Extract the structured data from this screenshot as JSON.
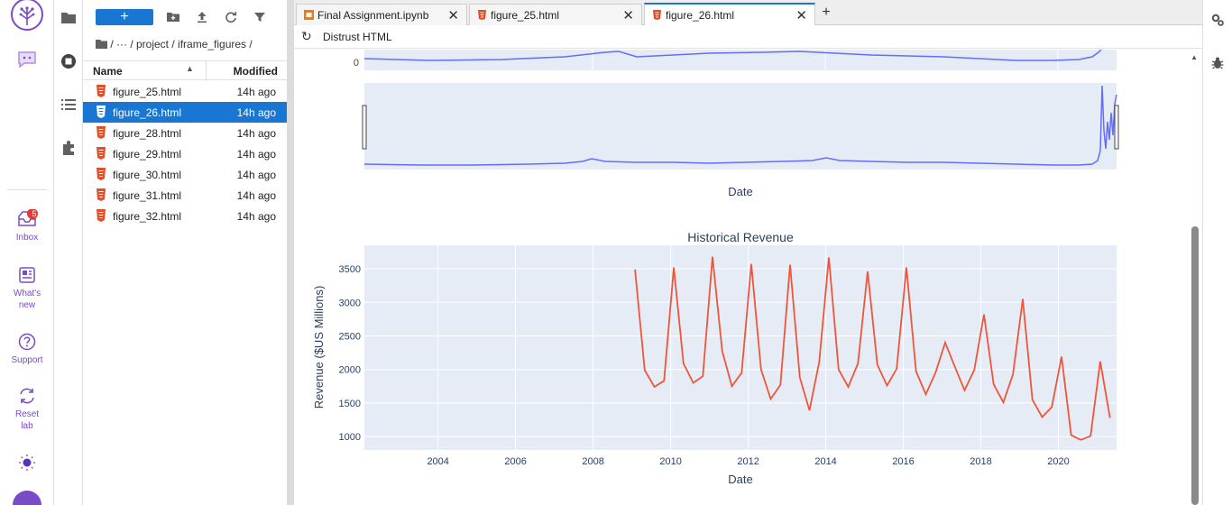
{
  "left_rail": {
    "inbox_label": "Inbox",
    "inbox_badge": "5",
    "whats_new_label_1": "What's",
    "whats_new_label_2": "new",
    "support_label": "Support",
    "reset_label_1": "Reset",
    "reset_label_2": "lab"
  },
  "filebrowser": {
    "new_button_label": "+",
    "breadcrumb": "/   ···  / project / iframe_figures /",
    "columns": {
      "name": "Name",
      "modified": "Modified"
    },
    "files": [
      {
        "name": "figure_25.html",
        "modified": "14h ago"
      },
      {
        "name": "figure_26.html",
        "modified": "14h ago"
      },
      {
        "name": "figure_28.html",
        "modified": "14h ago"
      },
      {
        "name": "figure_29.html",
        "modified": "14h ago"
      },
      {
        "name": "figure_30.html",
        "modified": "14h ago"
      },
      {
        "name": "figure_31.html",
        "modified": "14h ago"
      },
      {
        "name": "figure_32.html",
        "modified": "14h ago"
      }
    ],
    "selected_index": 1
  },
  "tabs": [
    {
      "label": "Final Assignment.ipynb",
      "icon": "notebook-icon"
    },
    {
      "label": "figure_25.html",
      "icon": "html5-icon"
    },
    {
      "label": "figure_26.html",
      "icon": "html5-icon"
    }
  ],
  "active_tab": 2,
  "toolbar": {
    "distrust_label": "Distrust HTML"
  },
  "colors": {
    "accent": "#1976d2",
    "plot_bg": "#e5ecf6",
    "price_line": "#636efa",
    "revenue_line": "#ef553b",
    "brand": "#7a4bc9"
  },
  "chart_data": [
    {
      "type": "line",
      "title": "",
      "top_axis_tick_visible": "0",
      "xlabel": "Date",
      "note": "stock price rangeslider (partially scrolled)"
    },
    {
      "type": "line",
      "title": "Historical Revenue",
      "xlabel": "Date",
      "ylabel": "Revenue ($US Millions)",
      "xlim": [
        2002.1,
        2021.5
      ],
      "ylim": [
        800,
        3850
      ],
      "x_ticks": [
        "2004",
        "2006",
        "2008",
        "2010",
        "2012",
        "2014",
        "2016",
        "2018",
        "2020"
      ],
      "y_ticks": [
        "1000",
        "1500",
        "2000",
        "2500",
        "3000",
        "3500"
      ],
      "series": [
        {
          "x": [
            2009.08,
            2009.33,
            2009.58,
            2009.83,
            2010.08,
            2010.33,
            2010.58,
            2010.83,
            2011.08,
            2011.33,
            2011.58,
            2011.83,
            2012.08,
            2012.33,
            2012.58,
            2012.83,
            2013.08,
            2013.33,
            2013.58,
            2013.83,
            2014.08,
            2014.33,
            2014.58,
            2014.83,
            2015.08,
            2015.33,
            2015.58,
            2015.83,
            2016.08,
            2016.33,
            2016.58,
            2016.83,
            2017.08,
            2017.33,
            2017.58,
            2017.83,
            2018.08,
            2018.33,
            2018.58,
            2018.83,
            2019.08,
            2019.33,
            2019.58,
            2019.83,
            2020.08,
            2020.33,
            2020.58,
            2020.83,
            2021.08,
            2021.33
          ],
          "values": [
            3490,
            1990,
            1740,
            1830,
            3520,
            2090,
            1800,
            1900,
            3680,
            2270,
            1750,
            1950,
            3570,
            2000,
            1560,
            1770,
            3560,
            1880,
            1390,
            2110,
            3670,
            2000,
            1740,
            2090,
            3460,
            2070,
            1760,
            2010,
            3520,
            1970,
            1630,
            1950,
            2400,
            2040,
            1690,
            1990,
            2820,
            1780,
            1510,
            1930,
            3050,
            1550,
            1290,
            1440,
            2190,
            1020,
            950,
            1010,
            2120,
            1280
          ]
        }
      ]
    }
  ]
}
